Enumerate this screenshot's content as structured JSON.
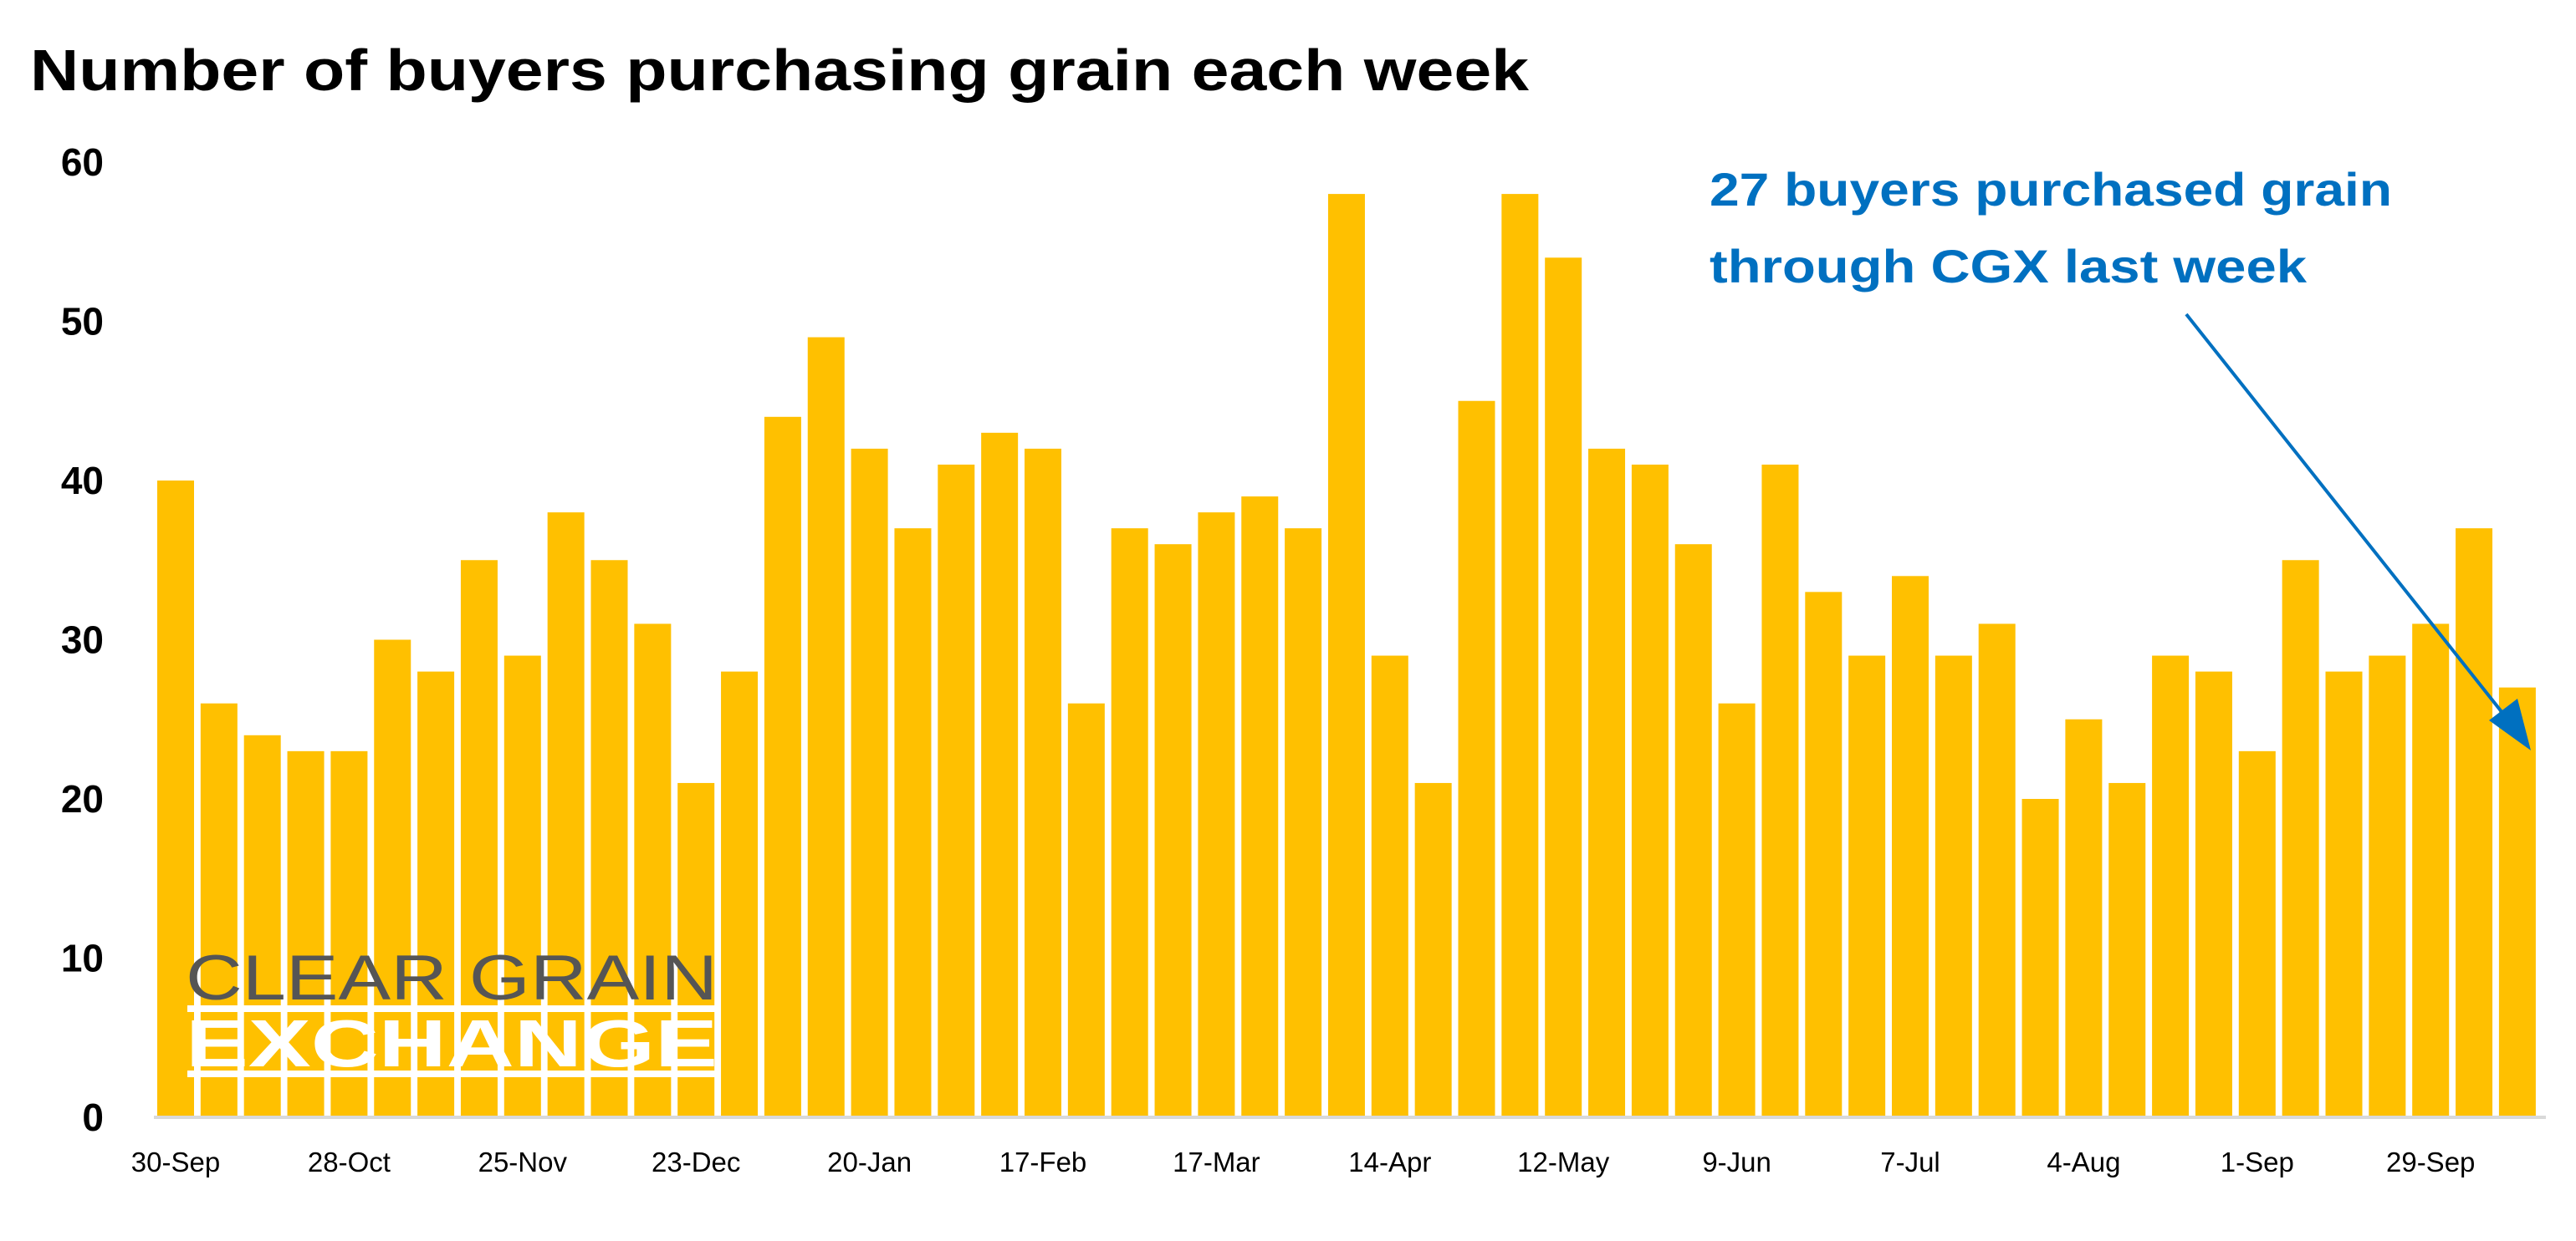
{
  "chart_data": {
    "type": "bar",
    "title": "Number of buyers purchasing grain each week",
    "xlabel": "",
    "ylabel": "",
    "ylim": [
      0,
      60
    ],
    "yticks": [
      "0",
      "10",
      "20",
      "30",
      "40",
      "50",
      "60"
    ],
    "grid": false,
    "x_tick_labels": [
      {
        "index": 0,
        "label": "30-Sep"
      },
      {
        "index": 4,
        "label": "28-Oct"
      },
      {
        "index": 8,
        "label": "25-Nov"
      },
      {
        "index": 12,
        "label": "23-Dec"
      },
      {
        "index": 16,
        "label": "20-Jan"
      },
      {
        "index": 20,
        "label": "17-Feb"
      },
      {
        "index": 24,
        "label": "17-Mar"
      },
      {
        "index": 28,
        "label": "14-Apr"
      },
      {
        "index": 32,
        "label": "12-May"
      },
      {
        "index": 36,
        "label": "9-Jun"
      },
      {
        "index": 40,
        "label": "7-Jul"
      },
      {
        "index": 44,
        "label": "4-Aug"
      },
      {
        "index": 48,
        "label": "1-Sep"
      },
      {
        "index": 52,
        "label": "29-Sep"
      }
    ],
    "values": [
      40,
      26,
      24,
      23,
      23,
      30,
      28,
      35,
      29,
      38,
      35,
      31,
      21,
      28,
      44,
      49,
      42,
      37,
      41,
      43,
      42,
      26,
      37,
      36,
      38,
      39,
      37,
      58,
      29,
      21,
      45,
      58,
      54,
      42,
      41,
      36,
      26,
      41,
      33,
      29,
      34,
      29,
      31,
      20,
      25,
      21,
      29,
      28,
      23,
      35,
      28,
      29,
      31,
      37,
      27
    ],
    "bar_color": "#FFC000",
    "annotation": {
      "lines": [
        "27 buyers purchased grain",
        "through CGX last week"
      ],
      "color": "#0070C0",
      "points_to_index": 54
    }
  },
  "logo": {
    "line1": "CLEAR GRAIN",
    "line2": "EXCHANGE"
  }
}
